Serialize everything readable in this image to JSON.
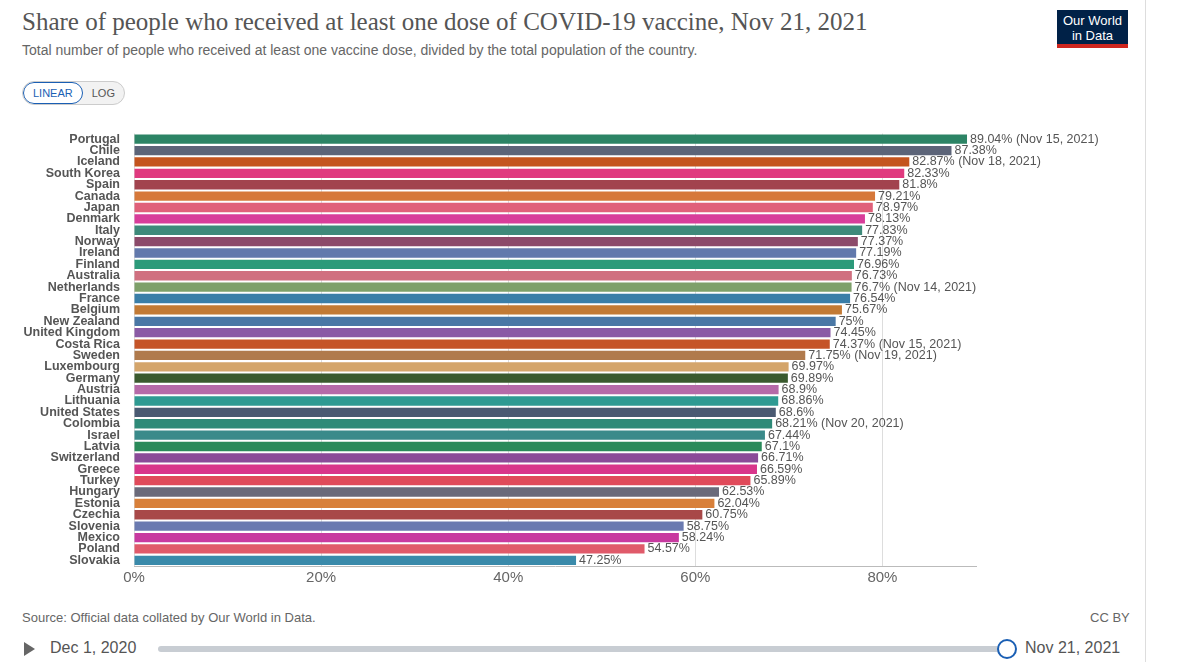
{
  "chart_data": {
    "type": "bar",
    "orientation": "horizontal",
    "title": "Share of people who received at least one dose of COVID-19 vaccine, Nov 21, 2021",
    "subtitle": "Total number of people who received at least one vaccine dose, divided by the total population of the country.",
    "source": "Source: Official data collated by Our World in Data.",
    "categories": [
      "Portugal",
      "Chile",
      "Iceland",
      "South Korea",
      "Spain",
      "Canada",
      "Japan",
      "Denmark",
      "Italy",
      "Norway",
      "Ireland",
      "Finland",
      "Australia",
      "Netherlands",
      "France",
      "Belgium",
      "New Zealand",
      "United Kingdom",
      "Costa Rica",
      "Sweden",
      "Luxembourg",
      "Germany",
      "Austria",
      "Lithuania",
      "United States",
      "Colombia",
      "Israel",
      "Latvia",
      "Switzerland",
      "Greece",
      "Turkey",
      "Hungary",
      "Estonia",
      "Czechia",
      "Slovenia",
      "Mexico",
      "Poland",
      "Slovakia"
    ],
    "values": [
      89.04,
      87.38,
      82.87,
      82.33,
      81.8,
      79.21,
      78.97,
      78.13,
      77.83,
      77.37,
      77.19,
      76.96,
      76.73,
      76.7,
      76.54,
      75.67,
      75,
      74.45,
      74.37,
      71.75,
      69.97,
      69.89,
      68.9,
      68.86,
      68.6,
      68.21,
      67.44,
      67.1,
      66.71,
      66.59,
      65.89,
      62.53,
      62.04,
      60.75,
      58.75,
      58.24,
      54.57,
      47.25
    ],
    "value_labels": [
      "89.04% (Nov 15, 2021)",
      "87.38%",
      "82.87% (Nov 18, 2021)",
      "82.33%",
      "81.8%",
      "79.21%",
      "78.97%",
      "78.13%",
      "77.83%",
      "77.37%",
      "77.19%",
      "76.96%",
      "76.73%",
      "76.7% (Nov 14, 2021)",
      "76.54%",
      "75.67%",
      "75%",
      "74.45%",
      "74.37% (Nov 15, 2021)",
      "71.75% (Nov 19, 2021)",
      "69.97%",
      "69.89%",
      "68.9%",
      "68.86%",
      "68.6%",
      "68.21% (Nov 20, 2021)",
      "67.44%",
      "67.1%",
      "66.71%",
      "66.59%",
      "65.89%",
      "62.53%",
      "62.04%",
      "60.75%",
      "58.75%",
      "58.24%",
      "54.57%",
      "47.25%"
    ],
    "colors": [
      "#2c8465",
      "#5c6478",
      "#c4541e",
      "#e03a7f",
      "#a2434e",
      "#d6783a",
      "#e0607a",
      "#d83d9a",
      "#3e8a7a",
      "#8c4a6a",
      "#6279ac",
      "#2c9a7a",
      "#d07080",
      "#7ea06a",
      "#3a7ea8",
      "#c27a35",
      "#4a77a5",
      "#8a5aa5",
      "#c55428",
      "#b07a4c",
      "#d4a56b",
      "#3a5a2e",
      "#b56aa8",
      "#2e9a92",
      "#4a5a72",
      "#2e8a78",
      "#3a8a8a",
      "#2a8a5a",
      "#8a4a98",
      "#d8358a",
      "#e04a5a",
      "#6a6a7a",
      "#d8803a",
      "#a84848",
      "#6a7ab0",
      "#c83aa0",
      "#e05a6a",
      "#3a8aaa"
    ],
    "xlim": [
      0,
      90
    ],
    "xticks": [
      {
        "value": 0,
        "label": "0%"
      },
      {
        "value": 20,
        "label": "20%"
      },
      {
        "value": 40,
        "label": "40%"
      },
      {
        "value": 60,
        "label": "60%"
      },
      {
        "value": 80,
        "label": "80%"
      }
    ],
    "log": false,
    "grid": true,
    "data_labels": true
  },
  "page": {
    "logo": [
      "Our World",
      "in Data"
    ],
    "buttons": [
      "LINEAR",
      "LOG"
    ],
    "selected_button": "LINEAR",
    "license": "CC BY",
    "timeline": {
      "start": "Dec 1, 2020",
      "end": "Nov 21, 2021"
    }
  }
}
